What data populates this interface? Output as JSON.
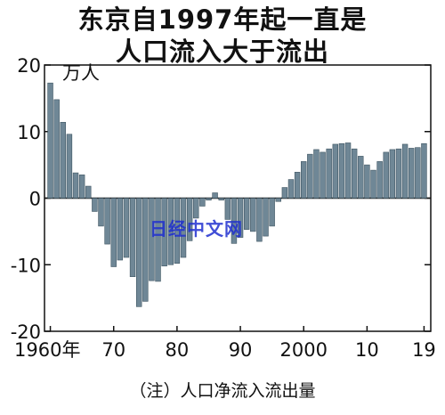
{
  "title_line1": "东京自1997年起一直是",
  "title_line2": "人口流入大于流出",
  "unit": "万人",
  "note": "（注）人口净流入流出量",
  "watermark": "日经中文网",
  "colors": {
    "bar": "#6f8796",
    "bar_edge": "#3f5562",
    "axis": "#111111",
    "grid": "#111111"
  },
  "chart_data": {
    "type": "bar",
    "title": "东京自1997年起一直是人口流入大于流出",
    "ylabel": "万人",
    "ylim": [
      -20,
      20
    ],
    "yticks": [
      -20,
      -10,
      0,
      10,
      20
    ],
    "ytick_labels": [
      "-20",
      "-10",
      "0",
      "10",
      "20"
    ],
    "xticks": [
      {
        "year": 1960,
        "label": "1960年"
      },
      {
        "year": 1970,
        "label": "70"
      },
      {
        "year": 1980,
        "label": "80"
      },
      {
        "year": 1990,
        "label": "90"
      },
      {
        "year": 2000,
        "label": "2000"
      },
      {
        "year": 2010,
        "label": "10"
      },
      {
        "year": 2019,
        "label": "19"
      }
    ],
    "years": [
      1960,
      1961,
      1962,
      1963,
      1964,
      1965,
      1966,
      1967,
      1968,
      1969,
      1970,
      1971,
      1972,
      1973,
      1974,
      1975,
      1976,
      1977,
      1978,
      1979,
      1980,
      1981,
      1982,
      1983,
      1984,
      1985,
      1986,
      1987,
      1988,
      1989,
      1990,
      1991,
      1992,
      1993,
      1994,
      1995,
      1996,
      1997,
      1998,
      1999,
      2000,
      2001,
      2002,
      2003,
      2004,
      2005,
      2006,
      2007,
      2008,
      2009,
      2010,
      2011,
      2012,
      2013,
      2014,
      2015,
      2016,
      2017,
      2018,
      2019
    ],
    "values": [
      17.3,
      14.8,
      11.4,
      9.6,
      3.8,
      3.5,
      1.8,
      -2.0,
      -4.2,
      -6.9,
      -10.3,
      -9.3,
      -8.9,
      -11.8,
      -16.3,
      -15.5,
      -12.4,
      -12.5,
      -10.2,
      -10.0,
      -9.8,
      -8.9,
      -6.4,
      -3.0,
      -1.2,
      -0.3,
      0.8,
      -0.3,
      -3.2,
      -6.8,
      -5.9,
      -4.7,
      -5.0,
      -6.5,
      -5.7,
      -4.2,
      -0.5,
      1.6,
      2.8,
      3.9,
      5.5,
      6.6,
      7.3,
      6.9,
      7.4,
      8.1,
      8.2,
      8.3,
      7.4,
      6.3,
      5.0,
      4.2,
      5.5,
      6.9,
      7.3,
      7.4,
      8.1,
      7.5,
      7.6,
      8.2
    ]
  }
}
